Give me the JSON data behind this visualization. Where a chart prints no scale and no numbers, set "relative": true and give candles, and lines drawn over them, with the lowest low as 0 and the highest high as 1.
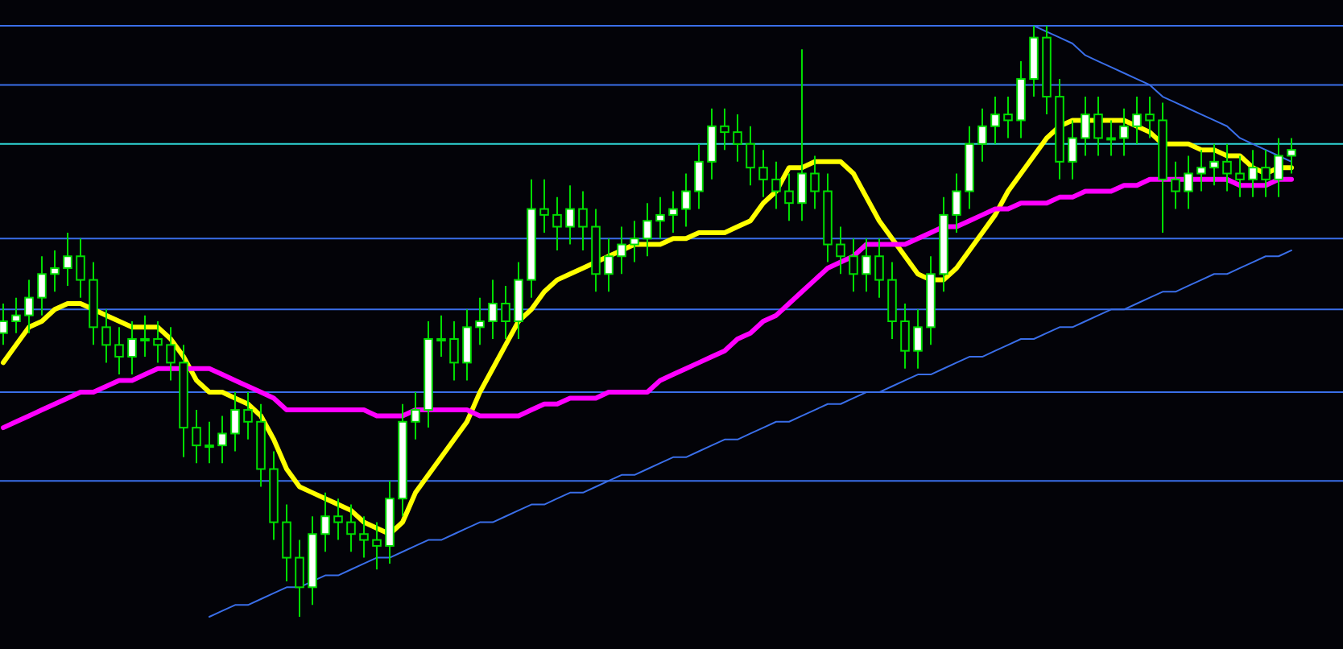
{
  "chart_data": {
    "type": "candlestick",
    "relative": true,
    "color": "#00dd00",
    "categories": [
      null,
      null,
      null,
      null,
      null,
      null,
      null,
      null,
      null,
      null,
      null,
      null,
      null,
      null,
      null,
      null,
      null,
      null,
      null,
      null,
      null,
      null,
      null,
      null,
      null,
      null,
      null,
      null,
      null,
      null,
      null,
      null,
      null,
      null,
      null,
      null,
      null,
      null,
      null,
      null,
      null,
      null,
      null,
      null,
      null,
      null,
      null,
      null,
      null,
      null,
      null,
      null,
      null,
      null,
      null,
      null,
      null,
      null,
      null,
      null,
      null,
      null,
      null,
      null,
      null,
      null,
      null,
      null,
      null,
      null,
      null,
      null,
      null,
      null,
      null,
      null,
      null,
      null,
      null,
      null,
      null,
      null,
      null,
      null,
      null,
      null,
      null,
      null,
      null,
      null,
      null,
      null,
      null,
      null,
      null,
      null,
      null,
      null,
      null,
      null,
      null
    ],
    "ohlc": [
      [
        0.48,
        0.53,
        0.46,
        0.5
      ],
      [
        0.5,
        0.54,
        0.48,
        0.51
      ],
      [
        0.51,
        0.57,
        0.48,
        0.54
      ],
      [
        0.54,
        0.61,
        0.51,
        0.58
      ],
      [
        0.58,
        0.62,
        0.55,
        0.59
      ],
      [
        0.59,
        0.65,
        0.56,
        0.61
      ],
      [
        0.61,
        0.64,
        0.54,
        0.57
      ],
      [
        0.57,
        0.6,
        0.46,
        0.49
      ],
      [
        0.49,
        0.52,
        0.43,
        0.46
      ],
      [
        0.46,
        0.49,
        0.41,
        0.44
      ],
      [
        0.44,
        0.5,
        0.41,
        0.47
      ],
      [
        0.47,
        0.51,
        0.44,
        0.47
      ],
      [
        0.47,
        0.5,
        0.43,
        0.46
      ],
      [
        0.46,
        0.49,
        0.4,
        0.43
      ],
      [
        0.43,
        0.46,
        0.27,
        0.32
      ],
      [
        0.32,
        0.35,
        0.26,
        0.29
      ],
      [
        0.29,
        0.33,
        0.26,
        0.29
      ],
      [
        0.29,
        0.34,
        0.26,
        0.31
      ],
      [
        0.31,
        0.38,
        0.28,
        0.35
      ],
      [
        0.35,
        0.38,
        0.3,
        0.33
      ],
      [
        0.33,
        0.36,
        0.22,
        0.25
      ],
      [
        0.25,
        0.28,
        0.13,
        0.16
      ],
      [
        0.16,
        0.19,
        0.06,
        0.1
      ],
      [
        0.1,
        0.13,
        0,
        0.05
      ],
      [
        0.05,
        0.17,
        0.02,
        0.14
      ],
      [
        0.14,
        0.21,
        0.11,
        0.17
      ],
      [
        0.17,
        0.2,
        0.13,
        0.16
      ],
      [
        0.16,
        0.19,
        0.11,
        0.14
      ],
      [
        0.14,
        0.17,
        0.1,
        0.13
      ],
      [
        0.13,
        0.16,
        0.08,
        0.12
      ],
      [
        0.12,
        0.23,
        0.09,
        0.2
      ],
      [
        0.2,
        0.36,
        0.17,
        0.33
      ],
      [
        0.33,
        0.38,
        0.3,
        0.35
      ],
      [
        0.35,
        0.5,
        0.32,
        0.47
      ],
      [
        0.47,
        0.51,
        0.44,
        0.47
      ],
      [
        0.47,
        0.5,
        0.4,
        0.43
      ],
      [
        0.43,
        0.52,
        0.4,
        0.49
      ],
      [
        0.49,
        0.54,
        0.46,
        0.5
      ],
      [
        0.5,
        0.57,
        0.47,
        0.53
      ],
      [
        0.53,
        0.56,
        0.47,
        0.5
      ],
      [
        0.5,
        0.6,
        0.47,
        0.57
      ],
      [
        0.57,
        0.74,
        0.54,
        0.69
      ],
      [
        0.69,
        0.74,
        0.65,
        0.68
      ],
      [
        0.68,
        0.71,
        0.62,
        0.66
      ],
      [
        0.66,
        0.73,
        0.63,
        0.69
      ],
      [
        0.69,
        0.72,
        0.62,
        0.66
      ],
      [
        0.66,
        0.69,
        0.55,
        0.58
      ],
      [
        0.58,
        0.64,
        0.55,
        0.61
      ],
      [
        0.61,
        0.66,
        0.58,
        0.63
      ],
      [
        0.63,
        0.67,
        0.6,
        0.64
      ],
      [
        0.64,
        0.7,
        0.61,
        0.67
      ],
      [
        0.67,
        0.71,
        0.64,
        0.68
      ],
      [
        0.68,
        0.72,
        0.65,
        0.69
      ],
      [
        0.69,
        0.75,
        0.66,
        0.72
      ],
      [
        0.72,
        0.8,
        0.69,
        0.77
      ],
      [
        0.77,
        0.86,
        0.74,
        0.83
      ],
      [
        0.83,
        0.86,
        0.79,
        0.82
      ],
      [
        0.82,
        0.85,
        0.77,
        0.8
      ],
      [
        0.8,
        0.83,
        0.73,
        0.76
      ],
      [
        0.76,
        0.79,
        0.71,
        0.74
      ],
      [
        0.74,
        0.77,
        0.69,
        0.72
      ],
      [
        0.72,
        0.75,
        0.67,
        0.7
      ],
      [
        0.7,
        0.96,
        0.67,
        0.75
      ],
      [
        0.75,
        0.78,
        0.69,
        0.72
      ],
      [
        0.72,
        0.75,
        0.6,
        0.63
      ],
      [
        0.63,
        0.66,
        0.58,
        0.61
      ],
      [
        0.61,
        0.64,
        0.55,
        0.58
      ],
      [
        0.58,
        0.64,
        0.55,
        0.61
      ],
      [
        0.61,
        0.64,
        0.54,
        0.57
      ],
      [
        0.57,
        0.6,
        0.47,
        0.5
      ],
      [
        0.5,
        0.53,
        0.42,
        0.45
      ],
      [
        0.45,
        0.52,
        0.42,
        0.49
      ],
      [
        0.49,
        0.61,
        0.46,
        0.58
      ],
      [
        0.58,
        0.71,
        0.55,
        0.68
      ],
      [
        0.68,
        0.75,
        0.65,
        0.72
      ],
      [
        0.72,
        0.83,
        0.69,
        0.8
      ],
      [
        0.8,
        0.86,
        0.77,
        0.83
      ],
      [
        0.83,
        0.88,
        0.8,
        0.85
      ],
      [
        0.85,
        0.88,
        0.81,
        0.84
      ],
      [
        0.84,
        0.94,
        0.81,
        0.91
      ],
      [
        0.91,
        1,
        0.88,
        0.98
      ],
      [
        0.98,
        1,
        0.85,
        0.88
      ],
      [
        0.88,
        0.91,
        0.74,
        0.77
      ],
      [
        0.77,
        0.84,
        0.74,
        0.81
      ],
      [
        0.81,
        0.88,
        0.78,
        0.85
      ],
      [
        0.85,
        0.88,
        0.78,
        0.81
      ],
      [
        0.81,
        0.84,
        0.78,
        0.81
      ],
      [
        0.81,
        0.86,
        0.78,
        0.83
      ],
      [
        0.83,
        0.88,
        0.8,
        0.85
      ],
      [
        0.85,
        0.88,
        0.81,
        0.84
      ],
      [
        0.84,
        0.87,
        0.65,
        0.74
      ],
      [
        0.74,
        0.77,
        0.69,
        0.72
      ],
      [
        0.72,
        0.78,
        0.69,
        0.75
      ],
      [
        0.75,
        0.79,
        0.72,
        0.76
      ],
      [
        0.76,
        0.8,
        0.73,
        0.77
      ],
      [
        0.77,
        0.8,
        0.72,
        0.75
      ],
      [
        0.75,
        0.78,
        0.71,
        0.74
      ],
      [
        0.74,
        0.79,
        0.71,
        0.76
      ],
      [
        0.76,
        0.79,
        0.71,
        0.74
      ],
      [
        0.74,
        0.81,
        0.71,
        0.78
      ],
      [
        0.78,
        0.81,
        0.75,
        0.79
      ]
    ],
    "ref_lines": [
      {
        "axis": "y",
        "value": 1,
        "color": "#3a6ee8"
      },
      {
        "axis": "y",
        "value": 0.9,
        "color": "#3a6ee8"
      },
      {
        "axis": "y",
        "value": 0.8,
        "color": "#30d8d8"
      },
      {
        "axis": "y",
        "value": 0.64,
        "color": "#3a6ee8"
      },
      {
        "axis": "y",
        "value": 0.52,
        "color": "#3a6ee8"
      },
      {
        "axis": "y",
        "value": 0.38,
        "color": "#3a6ee8"
      },
      {
        "axis": "y",
        "value": 0.23,
        "color": "#3a6ee8"
      }
    ],
    "series": [
      {
        "type": "line",
        "color": "#ffff00",
        "values": [
          0.43,
          0.46,
          0.49,
          0.5,
          0.52,
          0.53,
          0.53,
          0.52,
          0.51,
          0.5,
          0.49,
          0.49,
          0.49,
          0.47,
          0.44,
          0.4,
          0.38,
          0.38,
          0.37,
          0.36,
          0.34,
          0.3,
          0.25,
          0.22,
          0.21,
          0.2,
          0.19,
          0.18,
          0.16,
          0.15,
          0.14,
          0.16,
          0.21,
          0.24,
          0.27,
          0.3,
          0.33,
          0.38,
          0.42,
          0.46,
          0.5,
          0.52,
          0.55,
          0.57,
          0.58,
          0.59,
          0.6,
          0.61,
          0.62,
          0.63,
          0.63,
          0.63,
          0.64,
          0.64,
          0.65,
          0.65,
          0.65,
          0.66,
          0.67,
          0.7,
          0.72,
          0.76,
          0.76,
          0.77,
          0.77,
          0.77,
          0.75,
          0.71,
          0.67,
          0.64,
          0.61,
          0.58,
          0.57,
          0.57,
          0.59,
          0.62,
          0.65,
          0.68,
          0.72,
          0.75,
          0.78,
          0.81,
          0.83,
          0.84,
          0.84,
          0.84,
          0.84,
          0.84,
          0.83,
          0.82,
          0.8,
          0.8,
          0.8,
          0.79,
          0.79,
          0.78,
          0.78,
          0.76,
          0.75,
          0.76,
          0.76
        ]
      },
      {
        "type": "line",
        "color": "#ff00ff",
        "values": [
          0.32,
          0.33,
          0.34,
          0.35,
          0.36,
          0.37,
          0.38,
          0.38,
          0.39,
          0.4,
          0.4,
          0.41,
          0.42,
          0.42,
          0.42,
          0.42,
          0.42,
          0.41,
          0.4,
          0.39,
          0.38,
          0.37,
          0.35,
          0.35,
          0.35,
          0.35,
          0.35,
          0.35,
          0.35,
          0.34,
          0.34,
          0.34,
          0.35,
          0.35,
          0.35,
          0.35,
          0.35,
          0.34,
          0.34,
          0.34,
          0.34,
          0.35,
          0.36,
          0.36,
          0.37,
          0.37,
          0.37,
          0.38,
          0.38,
          0.38,
          0.38,
          0.4,
          0.41,
          0.42,
          0.43,
          0.44,
          0.45,
          0.47,
          0.48,
          0.5,
          0.51,
          0.53,
          0.55,
          0.57,
          0.59,
          0.6,
          0.61,
          0.63,
          0.63,
          0.63,
          0.63,
          0.64,
          0.65,
          0.66,
          0.66,
          0.67,
          0.68,
          0.69,
          0.69,
          0.7,
          0.7,
          0.7,
          0.71,
          0.71,
          0.72,
          0.72,
          0.72,
          0.73,
          0.73,
          0.74,
          0.74,
          0.74,
          0.74,
          0.74,
          0.74,
          0.74,
          0.73,
          0.73,
          0.73,
          0.74,
          0.74
        ]
      },
      {
        "type": "line",
        "color": "#3a6ee8",
        "values": [
          null,
          null,
          null,
          null,
          null,
          null,
          null,
          null,
          null,
          null,
          null,
          null,
          null,
          null,
          null,
          null,
          null,
          null,
          null,
          null,
          null,
          null,
          null,
          null,
          null,
          null,
          null,
          null,
          null,
          null,
          null,
          null,
          null,
          null,
          null,
          null,
          null,
          null,
          null,
          null,
          null,
          null,
          null,
          null,
          null,
          null,
          null,
          null,
          null,
          null,
          null,
          null,
          null,
          null,
          null,
          null,
          null,
          null,
          null,
          null,
          null,
          null,
          null,
          null,
          null,
          null,
          null,
          null,
          null,
          null,
          null,
          null,
          null,
          null,
          null,
          null,
          null,
          null,
          null,
          null,
          1,
          0.99,
          0.98,
          0.97,
          0.95,
          0.94,
          0.93,
          0.92,
          0.91,
          0.9,
          0.88,
          0.87,
          0.86,
          0.85,
          0.84,
          0.83,
          0.81,
          0.8,
          0.79,
          0.78,
          0.77
        ]
      },
      {
        "type": "line",
        "color": "#3a6ee8",
        "values": [
          null,
          null,
          null,
          null,
          null,
          null,
          null,
          null,
          null,
          null,
          null,
          null,
          null,
          null,
          null,
          null,
          0,
          0.01,
          0.02,
          0.02,
          0.03,
          0.04,
          0.05,
          0.05,
          0.06,
          0.07,
          0.07,
          0.08,
          0.09,
          0.1,
          0.1,
          0.11,
          0.12,
          0.13,
          0.13,
          0.14,
          0.15,
          0.16,
          0.16,
          0.17,
          0.18,
          0.19,
          0.19,
          0.2,
          0.21,
          0.21,
          0.22,
          0.23,
          0.24,
          0.24,
          0.25,
          0.26,
          0.27,
          0.27,
          0.28,
          0.29,
          0.3,
          0.3,
          0.31,
          0.32,
          0.33,
          0.33,
          0.34,
          0.35,
          0.36,
          0.36,
          0.37,
          0.38,
          0.38,
          0.39,
          0.4,
          0.41,
          0.41,
          0.42,
          0.43,
          0.44,
          0.44,
          0.45,
          0.46,
          0.47,
          0.47,
          0.48,
          0.49,
          0.49,
          0.5,
          0.51,
          0.52,
          0.52,
          0.53,
          0.54,
          0.55,
          0.55,
          0.56,
          0.57,
          0.58,
          0.58,
          0.59,
          0.6,
          0.61,
          0.61,
          0.62
        ]
      }
    ]
  }
}
